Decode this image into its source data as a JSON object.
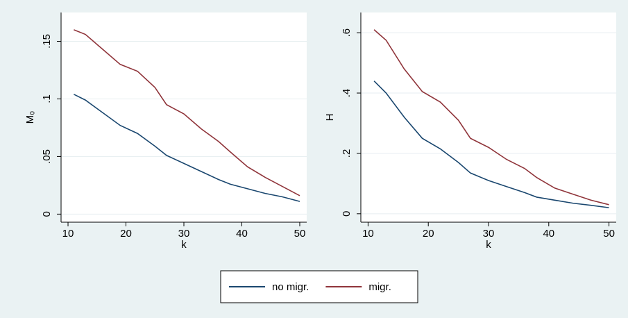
{
  "chart_data": [
    {
      "type": "line",
      "xlabel": "k",
      "ylabel": "M₀",
      "x": [
        11,
        13,
        16,
        19,
        22,
        25,
        27,
        30,
        33,
        36,
        38,
        41,
        44,
        47,
        50
      ],
      "series": [
        {
          "name": "no migr.",
          "color": "#1a476f",
          "values": [
            0.104,
            0.099,
            0.088,
            0.077,
            0.07,
            0.059,
            0.051,
            0.044,
            0.037,
            0.03,
            0.026,
            0.022,
            0.018,
            0.015,
            0.011
          ]
        },
        {
          "name": "migr.",
          "color": "#90353b",
          "values": [
            0.16,
            0.156,
            0.143,
            0.13,
            0.124,
            0.11,
            0.095,
            0.087,
            0.074,
            0.063,
            0.054,
            0.041,
            0.032,
            0.024,
            0.016
          ]
        }
      ],
      "xlim": [
        8.8,
        51.2
      ],
      "xticks": [
        10,
        20,
        30,
        40,
        50
      ],
      "ylim": [
        -0.007,
        0.175
      ],
      "yticks": [
        {
          "value": 0,
          "label": "0"
        },
        {
          "value": 0.05,
          "label": ".05"
        },
        {
          "value": 0.1,
          "label": ".1"
        },
        {
          "value": 0.15,
          "label": ".15"
        }
      ],
      "grid": true
    },
    {
      "type": "line",
      "xlabel": "k",
      "ylabel": "H",
      "x": [
        11,
        13,
        16,
        19,
        22,
        25,
        27,
        30,
        33,
        36,
        38,
        41,
        44,
        47,
        50
      ],
      "series": [
        {
          "color": "#1a476f",
          "values": [
            0.44,
            0.4,
            0.32,
            0.25,
            0.215,
            0.17,
            0.135,
            0.11,
            0.09,
            0.07,
            0.055,
            0.045,
            0.035,
            0.028,
            0.02
          ]
        },
        {
          "color": "#90353b",
          "values": [
            0.61,
            0.575,
            0.48,
            0.405,
            0.37,
            0.31,
            0.25,
            0.22,
            0.18,
            0.15,
            0.12,
            0.085,
            0.065,
            0.045,
            0.03
          ]
        }
      ],
      "xlim": [
        8.8,
        51.2
      ],
      "xticks": [
        10,
        20,
        30,
        40,
        50
      ],
      "ylim": [
        -0.028,
        0.667
      ],
      "yticks": [
        {
          "value": 0,
          "label": "0"
        },
        {
          "value": 0.2,
          "label": ".2"
        },
        {
          "value": 0.4,
          "label": ".4"
        },
        {
          "value": 0.6,
          "label": ".6"
        }
      ],
      "grid": true
    }
  ]
}
